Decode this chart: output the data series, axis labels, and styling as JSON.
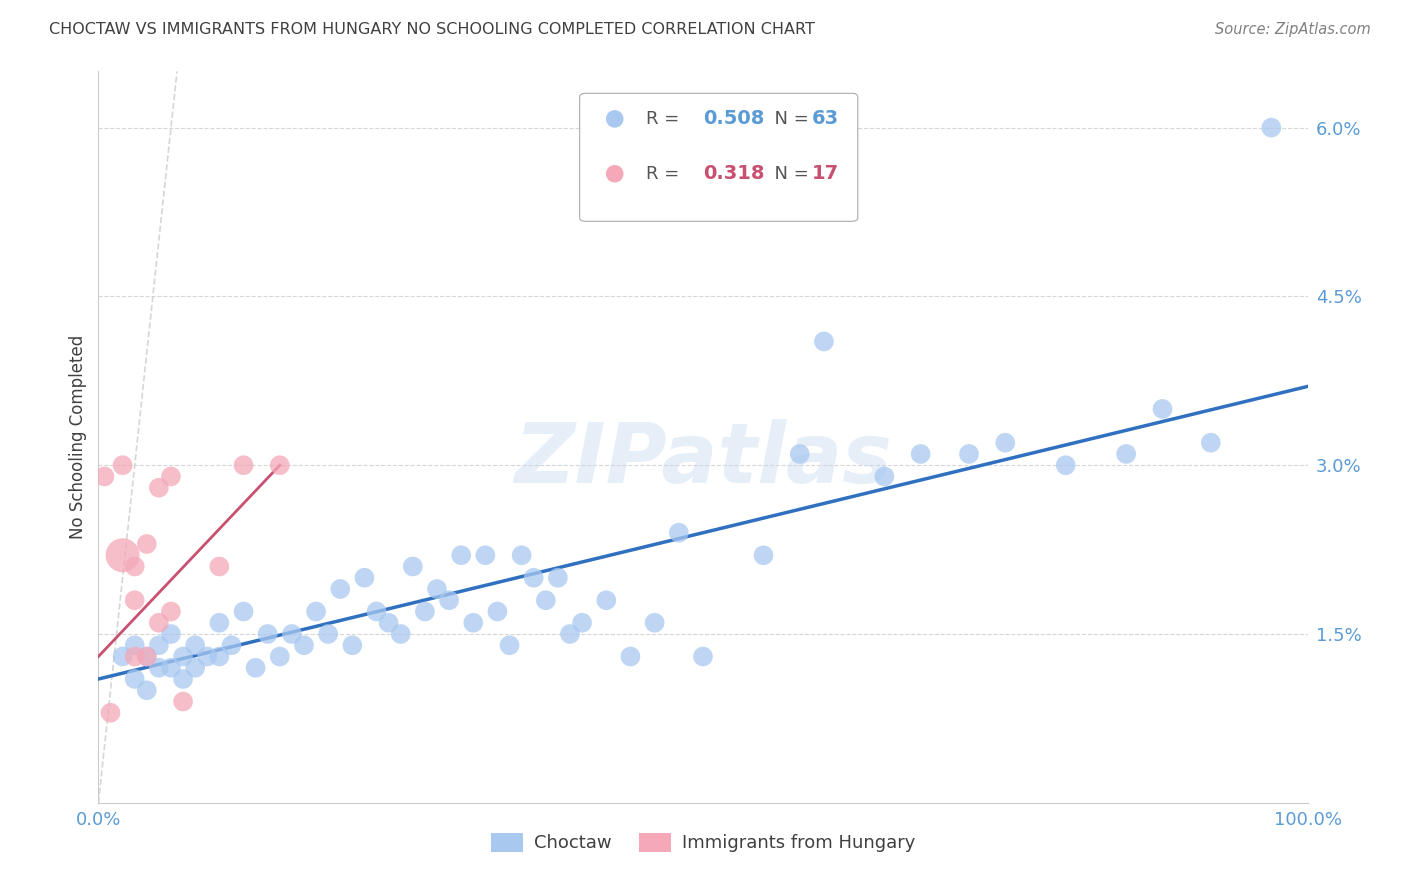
{
  "title": "CHOCTAW VS IMMIGRANTS FROM HUNGARY NO SCHOOLING COMPLETED CORRELATION CHART",
  "source": "Source: ZipAtlas.com",
  "ylabel": "No Schooling Completed",
  "xlim": [
    0.0,
    1.0
  ],
  "ylim": [
    0.0,
    0.065
  ],
  "yticks": [
    0.015,
    0.03,
    0.045,
    0.06
  ],
  "ytick_labels": [
    "1.5%",
    "3.0%",
    "4.5%",
    "6.0%"
  ],
  "xticks": [
    0.0,
    0.25,
    0.5,
    0.75,
    1.0
  ],
  "xtick_labels": [
    "0.0%",
    "",
    "",
    "",
    "100.0%"
  ],
  "blue_R": 0.508,
  "blue_N": 63,
  "pink_R": 0.318,
  "pink_N": 17,
  "blue_color": "#A8C8F0",
  "pink_color": "#F4A8B8",
  "trendline_blue_color": "#3070C0",
  "trendline_pink_color": "#C85070",
  "diagonal_color": "#CCCCCC",
  "background_color": "#FFFFFF",
  "grid_color": "#CCCCCC",
  "label_color": "#5B9BD5",
  "title_color": "#404040",
  "blue_scatter_x": [
    0.02,
    0.03,
    0.03,
    0.04,
    0.04,
    0.05,
    0.05,
    0.06,
    0.06,
    0.07,
    0.07,
    0.08,
    0.08,
    0.09,
    0.1,
    0.1,
    0.11,
    0.12,
    0.13,
    0.14,
    0.15,
    0.16,
    0.17,
    0.18,
    0.19,
    0.2,
    0.21,
    0.22,
    0.23,
    0.24,
    0.25,
    0.26,
    0.27,
    0.28,
    0.29,
    0.3,
    0.31,
    0.32,
    0.33,
    0.34,
    0.35,
    0.36,
    0.37,
    0.38,
    0.39,
    0.4,
    0.42,
    0.44,
    0.46,
    0.48,
    0.5,
    0.55,
    0.58,
    0.6,
    0.65,
    0.68,
    0.72,
    0.75,
    0.8,
    0.85,
    0.88,
    0.92,
    0.97
  ],
  "blue_scatter_y": [
    0.013,
    0.011,
    0.014,
    0.01,
    0.013,
    0.014,
    0.012,
    0.015,
    0.012,
    0.013,
    0.011,
    0.014,
    0.012,
    0.013,
    0.016,
    0.013,
    0.014,
    0.017,
    0.012,
    0.015,
    0.013,
    0.015,
    0.014,
    0.017,
    0.015,
    0.019,
    0.014,
    0.02,
    0.017,
    0.016,
    0.015,
    0.021,
    0.017,
    0.019,
    0.018,
    0.022,
    0.016,
    0.022,
    0.017,
    0.014,
    0.022,
    0.02,
    0.018,
    0.02,
    0.015,
    0.016,
    0.018,
    0.013,
    0.016,
    0.024,
    0.013,
    0.022,
    0.031,
    0.041,
    0.029,
    0.031,
    0.031,
    0.032,
    0.03,
    0.031,
    0.035,
    0.032,
    0.06
  ],
  "blue_sizes": [
    200,
    200,
    200,
    200,
    200,
    200,
    200,
    200,
    200,
    200,
    200,
    200,
    200,
    200,
    200,
    200,
    200,
    200,
    200,
    200,
    200,
    200,
    200,
    200,
    200,
    200,
    200,
    200,
    200,
    200,
    200,
    200,
    200,
    200,
    200,
    200,
    200,
    200,
    200,
    200,
    200,
    200,
    200,
    200,
    200,
    200,
    200,
    200,
    200,
    200,
    200,
    200,
    200,
    200,
    200,
    200,
    200,
    200,
    200,
    200,
    200,
    200,
    200
  ],
  "pink_scatter_x": [
    0.005,
    0.01,
    0.02,
    0.02,
    0.03,
    0.03,
    0.03,
    0.04,
    0.04,
    0.05,
    0.05,
    0.06,
    0.06,
    0.07,
    0.1,
    0.12,
    0.15
  ],
  "pink_scatter_y": [
    0.029,
    0.008,
    0.022,
    0.03,
    0.021,
    0.018,
    0.013,
    0.013,
    0.023,
    0.028,
    0.016,
    0.029,
    0.017,
    0.009,
    0.021,
    0.03,
    0.03
  ],
  "pink_sizes": [
    200,
    200,
    600,
    200,
    200,
    200,
    200,
    200,
    200,
    200,
    200,
    200,
    200,
    200,
    200,
    200,
    200
  ],
  "blue_line_x": [
    0.0,
    1.0
  ],
  "blue_line_y": [
    0.011,
    0.037
  ],
  "pink_line_x": [
    0.0,
    0.15
  ],
  "pink_line_y": [
    0.013,
    0.03
  ],
  "watermark": "ZIPatlas"
}
